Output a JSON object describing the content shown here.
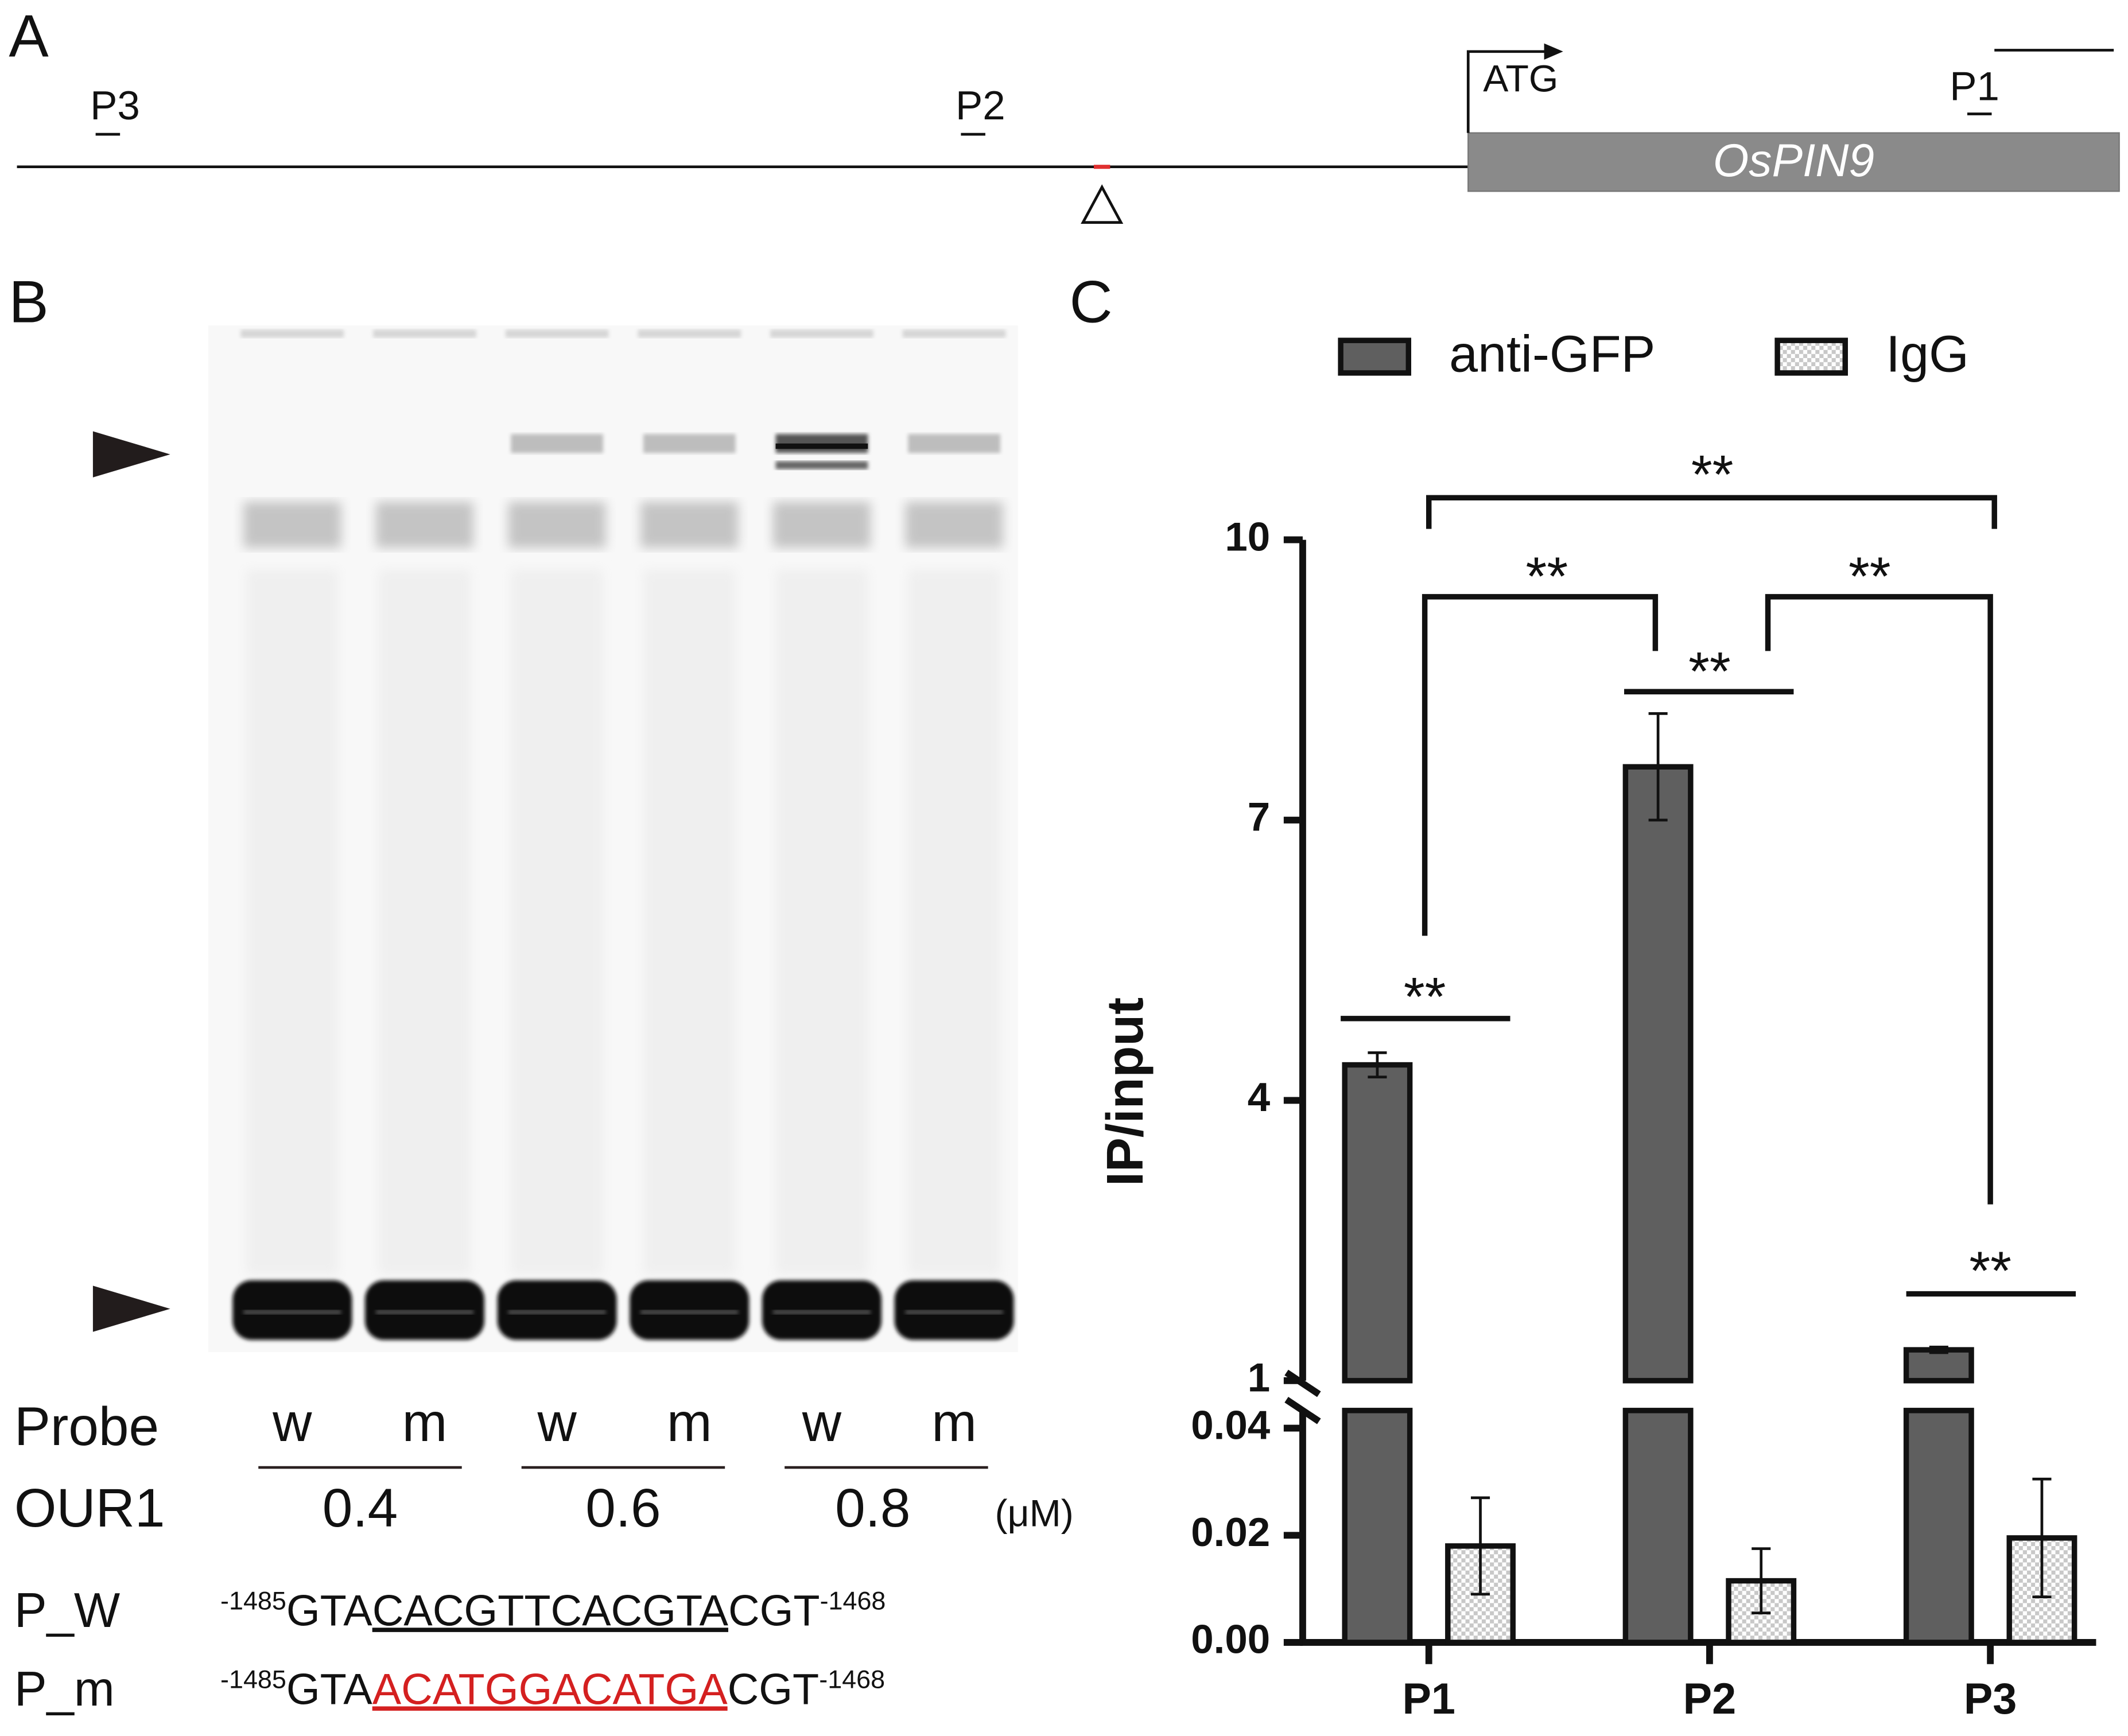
{
  "panel_labels": [
    "A",
    "B",
    "C"
  ],
  "gene_diagram": {
    "primers": [
      "P3",
      "P2",
      "P1"
    ],
    "start_codon": "ATG",
    "gene": "OsPIN9"
  },
  "emsa": {
    "probe_label": "Probe",
    "protein_label": "OUR1",
    "probes": [
      "w",
      "m",
      "w",
      "m",
      "w",
      "m"
    ],
    "concentrations": [
      0.4,
      0.6,
      0.8
    ],
    "unit": "(μM)",
    "sequences": [
      {
        "name": "P_W",
        "start": -1485,
        "prefix": "GTA",
        "core": "CACGTTCACGTA",
        "suffix": "CGT",
        "end": -1468
      },
      {
        "name": "P_m",
        "start": -1485,
        "prefix": "GTA",
        "core": "ACATGGACATGA",
        "suffix": "CGT",
        "end": -1468
      }
    ]
  },
  "chart_data": {
    "type": "bar",
    "y_label": "IP/input",
    "categories": [
      "P1",
      "P2",
      "P3"
    ],
    "series": [
      {
        "name": "anti-GFP",
        "color": "#5f5f5f",
        "values": [
          4.38,
          7.57,
          1.33
        ],
        "errors": [
          0.13,
          0.57,
          0.03
        ]
      },
      {
        "name": "IgG",
        "color": "#c8c8c8",
        "fill_pattern": "checkered",
        "values": [
          0.018,
          0.0115,
          0.0195
        ],
        "errors": [
          0.009,
          0.006,
          0.011
        ]
      }
    ],
    "ylim_upper": [
      1,
      10
    ],
    "yticks_upper": [
      1,
      4,
      7,
      10
    ],
    "ylim_lower": [
      0,
      0.04
    ],
    "yticks_lower": [
      {
        "value": 0,
        "label": "0.00"
      },
      0.02,
      0.04
    ],
    "annotations": [
      "**",
      "**",
      "**",
      "**",
      "**",
      "**"
    ],
    "legend": "top"
  }
}
